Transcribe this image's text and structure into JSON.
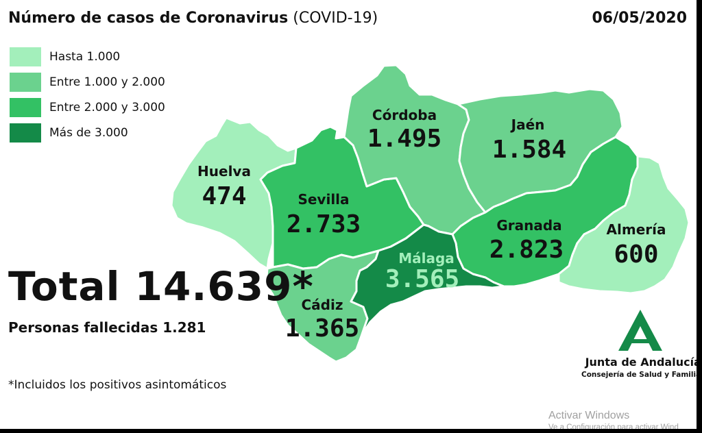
{
  "header": {
    "title": "Número de casos de Coronavirus",
    "subtitle": "(COVID-19)",
    "date": "06/05/2020"
  },
  "colors": {
    "bin_1": "#a3efbb",
    "bin_2": "#6bd28e",
    "bin_3": "#33c164",
    "bin_4": "#148a48",
    "malaga_label": "#a3efbb",
    "brand": "#148a48"
  },
  "legend": {
    "items": [
      {
        "label": "Hasta 1.000",
        "color": "#a3efbb"
      },
      {
        "label": "Entre 1.000 y 2.000",
        "color": "#6bd28e"
      },
      {
        "label": "Entre 2.000 y 3.000",
        "color": "#33c164"
      },
      {
        "label": "Más de 3.000",
        "color": "#148a48"
      }
    ]
  },
  "provinces": {
    "huelva": {
      "name": "Huelva",
      "cases": "474",
      "bin": 1
    },
    "sevilla": {
      "name": "Sevilla",
      "cases": "2.733",
      "bin": 3
    },
    "cadiz": {
      "name": "Cádiz",
      "cases": "1.365",
      "bin": 2
    },
    "cordoba": {
      "name": "Córdoba",
      "cases": "1.495",
      "bin": 2
    },
    "malaga": {
      "name": "Málaga",
      "cases": "3.565",
      "bin": 4
    },
    "jaen": {
      "name": "Jaén",
      "cases": "1.584",
      "bin": 2
    },
    "granada": {
      "name": "Granada",
      "cases": "2.823",
      "bin": 3
    },
    "almeria": {
      "name": "Almería",
      "cases": "600",
      "bin": 1
    }
  },
  "summary": {
    "total": "Total 14.639*",
    "deaths": "Personas fallecidas 1.281",
    "footnote": "*Incluidos los positivos asintomáticos"
  },
  "logo": {
    "name": "Junta de Andalucía",
    "sub": "Consejería de Salud y Familias"
  },
  "watermark": {
    "title": "Activar Windows",
    "sub": "Ve a Configuración para activar Wind"
  }
}
